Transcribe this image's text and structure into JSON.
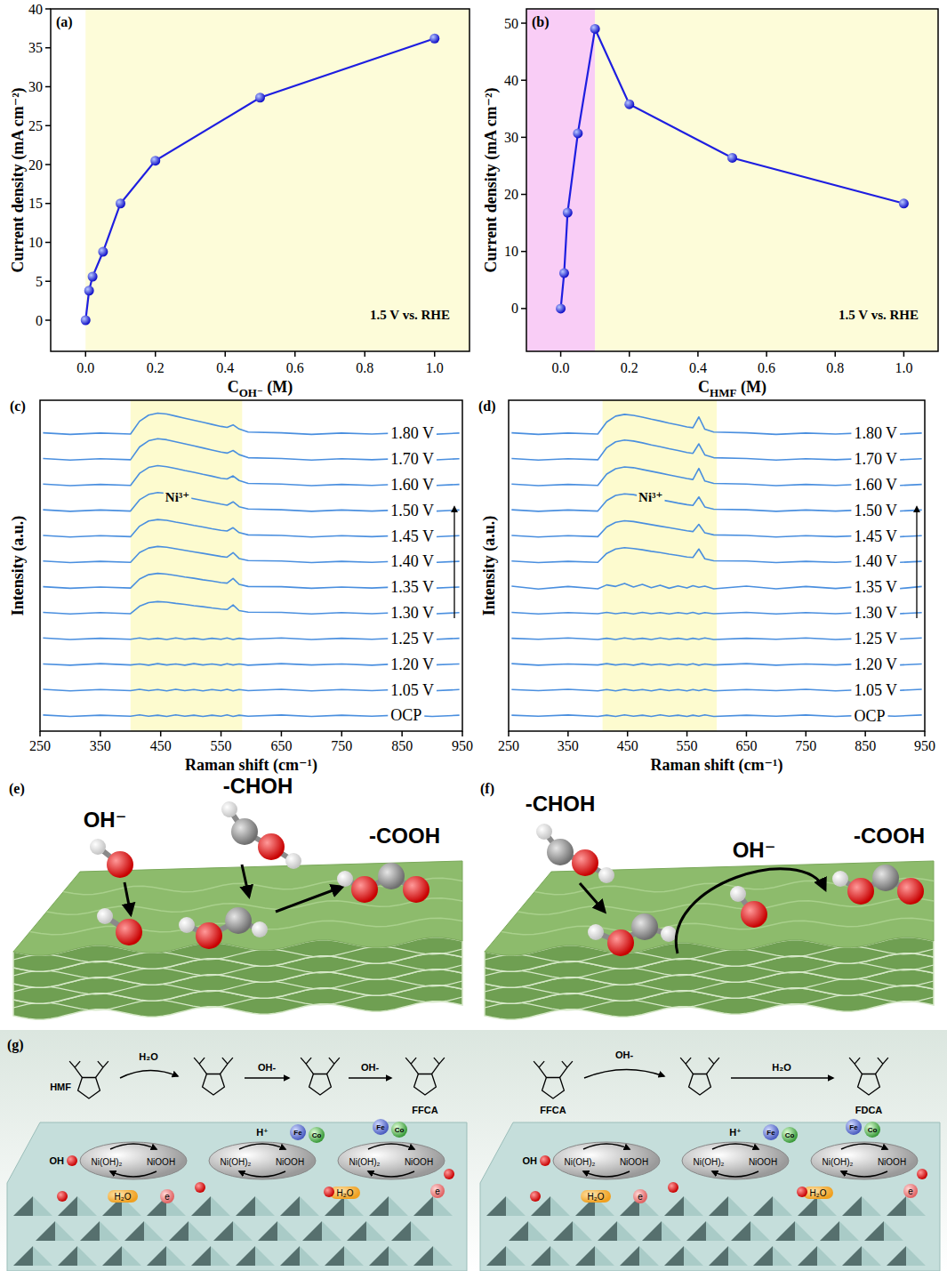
{
  "chart_data": [
    {
      "type": "line",
      "panel_label": "(a)",
      "x_label": "COH⁻ (M)",
      "y_label": "Current density (mA cm⁻²)",
      "annotation": "1.5 V vs. RHE",
      "x": [
        0,
        0.01,
        0.02,
        0.05,
        0.1,
        0.2,
        0.5,
        1.0
      ],
      "values": [
        0,
        3.8,
        5.6,
        8.8,
        15,
        20.5,
        28.6,
        36.2
      ],
      "color": "#1e1ee0",
      "marker": "circle",
      "xlim": [
        -0.1,
        1.1
      ],
      "ylim": [
        -4,
        40
      ],
      "xticks": [
        {
          "value": 0,
          "label": "0.0"
        },
        0.2,
        0.4,
        0.6,
        0.8,
        {
          "value": 1,
          "label": "1.0"
        }
      ],
      "yticks": [
        0,
        5,
        10,
        15,
        20,
        25,
        30,
        35,
        40
      ],
      "regions": [
        {
          "x": [
            0,
            1.1
          ],
          "color": "#fdfcd9"
        }
      ]
    },
    {
      "type": "line",
      "panel_label": "(b)",
      "x_label": "CHMF (M)",
      "y_label": "Current density (mA cm⁻²)",
      "annotation": "1.5 V vs. RHE",
      "x": [
        0,
        0.01,
        0.02,
        0.05,
        0.1,
        0.2,
        0.5,
        1.0
      ],
      "values": [
        0,
        6.2,
        16.8,
        30.7,
        49,
        35.8,
        26.4,
        18.4
      ],
      "color": "#1e1ee0",
      "marker": "circle",
      "xlim": [
        -0.1,
        1.1
      ],
      "ylim": [
        -7.5,
        52.5
      ],
      "xticks": [
        {
          "value": 0,
          "label": "0.0"
        },
        0.2,
        0.4,
        0.6,
        0.8,
        {
          "value": 1,
          "label": "1.0"
        }
      ],
      "yticks": [
        0,
        10,
        20,
        30,
        40,
        50
      ],
      "regions": [
        {
          "x": [
            -0.1,
            0.1
          ],
          "color": "#f9cdf6"
        },
        {
          "x": [
            0.1,
            1.1
          ],
          "color": "#fdfcd9"
        }
      ]
    },
    {
      "type": "line",
      "panel_label": "(c)",
      "x_label": "Raman shift (cm⁻¹)",
      "y_label": "Intensity (a.u.)",
      "annotation": "Ni³⁺",
      "color": "#4a8fdf",
      "tick_labels": "x",
      "xlim": [
        250,
        950
      ],
      "ylim": [
        -0.6,
        12.3
      ],
      "xticks": [
        250,
        350,
        450,
        550,
        650,
        750,
        850,
        950
      ],
      "shaded": {
        "x": [
          400,
          585
        ],
        "color": "#fdfbcf"
      },
      "x": [
        255,
        300,
        350,
        400,
        415,
        430,
        445,
        460,
        475,
        490,
        505,
        520,
        535,
        550,
        560,
        570,
        580,
        595,
        650,
        700,
        750,
        800,
        850,
        900,
        945
      ],
      "series": [
        {
          "name": "OCP",
          "values": [
            0.03,
            -0.03,
            0.02,
            -0.02,
            0.03,
            -0.02,
            0.02,
            -0.03,
            0.03,
            -0.02,
            0.02,
            -0.03,
            0.02,
            -0.02,
            0.03,
            -0.03,
            0.02,
            -0.02,
            0.03,
            -0.03,
            0.02,
            -0.02,
            0.03,
            -0.03,
            0.02
          ]
        },
        {
          "name": "1.05 V",
          "values": [
            1.03,
            0.97,
            1.02,
            0.98,
            1.03,
            0.98,
            1.02,
            0.97,
            1.03,
            0.98,
            1.02,
            0.97,
            1.02,
            0.98,
            1.03,
            0.97,
            1.02,
            0.98,
            1.03,
            0.97,
            1.02,
            0.98,
            1.03,
            0.97,
            1.02
          ]
        },
        {
          "name": "1.20 V",
          "values": [
            2.02,
            1.97,
            2.03,
            1.98,
            2.02,
            1.97,
            2.03,
            1.98,
            2.02,
            1.97,
            2.03,
            1.98,
            2.02,
            1.97,
            2.03,
            1.98,
            2.02,
            1.97,
            2.03,
            1.98,
            2.02,
            1.97,
            2.03,
            1.98,
            2.02
          ]
        },
        {
          "name": "1.25 V",
          "values": [
            3.03,
            2.97,
            3.02,
            2.98,
            3.03,
            2.98,
            3.02,
            2.97,
            3.03,
            2.98,
            3.02,
            2.97,
            3.02,
            2.98,
            3.03,
            2.97,
            3.02,
            2.98,
            3.03,
            2.97,
            3.02,
            2.98,
            3.03,
            2.97,
            3.02
          ]
        },
        {
          "name": "1.30 V",
          "values": [
            4.03,
            3.97,
            4.02,
            3.98,
            4.27,
            4.41,
            4.45,
            4.43,
            4.38,
            4.34,
            4.29,
            4.25,
            4.2,
            4.16,
            4.14,
            4.32,
            4.1,
            4.04,
            4.03,
            3.97,
            4.02,
            3.98,
            4.03,
            3.97,
            4.02
          ]
        },
        {
          "name": "1.35 V",
          "values": [
            5.03,
            4.97,
            5.02,
            4.98,
            5.33,
            5.5,
            5.55,
            5.52,
            5.47,
            5.41,
            5.36,
            5.3,
            5.25,
            5.19,
            5.17,
            5.35,
            5.12,
            5.04,
            5.03,
            4.97,
            5.02,
            4.98,
            5.03,
            4.97,
            5.02
          ]
        },
        {
          "name": "1.40 V",
          "values": [
            6.03,
            5.97,
            6.02,
            5.98,
            6.36,
            6.54,
            6.6,
            6.57,
            6.51,
            6.45,
            6.39,
            6.33,
            6.27,
            6.21,
            6.18,
            6.36,
            6.13,
            6.05,
            6.03,
            5.97,
            6.02,
            5.98,
            6.03,
            5.97,
            6.02
          ]
        },
        {
          "name": "1.45 V",
          "values": [
            7.03,
            6.97,
            7.02,
            6.98,
            7.39,
            7.59,
            7.65,
            7.62,
            7.55,
            7.49,
            7.42,
            7.36,
            7.29,
            7.23,
            7.2,
            7.33,
            7.14,
            7.05,
            7.03,
            6.97,
            7.02,
            6.98,
            7.03,
            6.97,
            7.02
          ]
        },
        {
          "name": "1.50 V",
          "values": [
            8.03,
            7.97,
            8.02,
            7.98,
            8.42,
            8.63,
            8.7,
            8.67,
            8.6,
            8.53,
            8.46,
            8.39,
            8.32,
            8.25,
            8.21,
            8.34,
            8.15,
            8.06,
            8.03,
            7.97,
            8.02,
            7.98,
            8.03,
            7.97,
            8.02
          ]
        },
        {
          "name": "1.60 V",
          "values": [
            9.03,
            8.97,
            9.02,
            8.98,
            9.45,
            9.68,
            9.75,
            9.71,
            9.64,
            9.56,
            9.49,
            9.41,
            9.34,
            9.26,
            9.23,
            9.35,
            9.17,
            9.06,
            9.03,
            8.97,
            9.02,
            8.98,
            9.03,
            8.97,
            9.02
          ]
        },
        {
          "name": "1.70 V",
          "values": [
            10.03,
            9.97,
            10.02,
            9.98,
            10.48,
            10.72,
            10.8,
            10.76,
            10.68,
            10.6,
            10.52,
            10.44,
            10.36,
            10.28,
            10.24,
            10.34,
            10.18,
            10.06,
            10.03,
            9.97,
            10.02,
            9.98,
            10.03,
            9.97,
            10.02
          ]
        },
        {
          "name": "1.80 V",
          "values": [
            11.03,
            10.97,
            11.02,
            10.98,
            11.48,
            11.72,
            11.8,
            11.76,
            11.68,
            11.6,
            11.52,
            11.44,
            11.36,
            11.28,
            11.24,
            11.34,
            11.18,
            11.06,
            11.03,
            10.97,
            11.02,
            10.98,
            11.03,
            10.97,
            11.02
          ]
        }
      ]
    },
    {
      "type": "line",
      "panel_label": "(d)",
      "x_label": "Raman shift (cm⁻¹)",
      "y_label": "Intensity (a.u.)",
      "annotation": "Ni³⁺",
      "color": "#4a8fdf",
      "tick_labels": "x",
      "xlim": [
        250,
        950
      ],
      "ylim": [
        -0.6,
        12.3
      ],
      "xticks": [
        250,
        350,
        450,
        550,
        650,
        750,
        850,
        950
      ],
      "shaded": {
        "x": [
          408,
          600
        ],
        "color": "#fdfbcf"
      },
      "x": [
        255,
        300,
        350,
        400,
        415,
        430,
        445,
        460,
        475,
        490,
        505,
        520,
        535,
        550,
        560,
        570,
        580,
        595,
        650,
        700,
        750,
        800,
        850,
        900,
        945
      ],
      "series": [
        {
          "name": "OCP",
          "values": [
            0.02,
            -0.02,
            0.03,
            -0.03,
            0.02,
            -0.03,
            0.03,
            -0.02,
            0.02,
            -0.03,
            0.03,
            -0.02,
            0.02,
            -0.03,
            0.02,
            -0.02,
            0.03,
            -0.03,
            0.02,
            -0.02,
            0.03,
            -0.03,
            0.02,
            -0.02,
            0.03
          ]
        },
        {
          "name": "1.05 V",
          "values": [
            1.02,
            0.98,
            1.03,
            0.97,
            1.02,
            0.97,
            1.03,
            0.98,
            1.02,
            0.97,
            1.03,
            0.98,
            1.02,
            0.97,
            1.02,
            0.98,
            1.03,
            0.97,
            1.02,
            0.98,
            1.03,
            0.97,
            1.02,
            0.98,
            1.03
          ]
        },
        {
          "name": "1.20 V",
          "values": [
            2.03,
            1.97,
            2.02,
            1.98,
            2.03,
            1.98,
            2.02,
            1.97,
            2.03,
            1.98,
            2.02,
            1.97,
            2.02,
            1.98,
            2.03,
            1.97,
            2.02,
            1.98,
            2.03,
            1.97,
            2.02,
            1.98,
            2.03,
            1.97,
            2.02
          ]
        },
        {
          "name": "1.25 V",
          "values": [
            3.02,
            2.98,
            3.03,
            2.97,
            3.02,
            2.97,
            3.03,
            2.98,
            3.02,
            2.97,
            3.03,
            2.98,
            3.02,
            2.97,
            3.02,
            2.98,
            3.03,
            2.97,
            3.02,
            2.98,
            3.03,
            2.97,
            3.02,
            2.98,
            3.03
          ]
        },
        {
          "name": "1.30 V",
          "values": [
            4.03,
            3.97,
            4.02,
            3.98,
            4.03,
            3.98,
            4.02,
            3.97,
            4.03,
            3.98,
            4.02,
            3.97,
            4.02,
            3.98,
            4.03,
            3.97,
            4.02,
            3.98,
            4.03,
            3.97,
            4.02,
            3.98,
            4.03,
            3.97,
            4.02
          ]
        },
        {
          "name": "1.35 V",
          "values": [
            5.05,
            4.94,
            5.04,
            4.95,
            5.1,
            5.04,
            5.16,
            5.02,
            5.12,
            4.99,
            5.09,
            4.97,
            5.06,
            4.98,
            5.07,
            5.01,
            5.05,
            4.95,
            5.05,
            4.95,
            5.04,
            4.96,
            5.05,
            4.94,
            5.04
          ]
        },
        {
          "name": "1.40 V",
          "values": [
            6.03,
            5.97,
            6.02,
            5.98,
            6.33,
            6.5,
            6.55,
            6.52,
            6.47,
            6.41,
            6.36,
            6.3,
            6.25,
            6.19,
            6.17,
            6.5,
            6.12,
            6.04,
            6.03,
            5.97,
            6.02,
            5.98,
            6.03,
            5.97,
            6.02
          ]
        },
        {
          "name": "1.45 V",
          "values": [
            7.03,
            6.97,
            7.02,
            6.98,
            7.36,
            7.54,
            7.6,
            7.57,
            7.51,
            7.45,
            7.39,
            7.33,
            7.27,
            7.21,
            7.18,
            7.46,
            7.13,
            7.05,
            7.03,
            6.97,
            7.02,
            6.98,
            7.03,
            6.97,
            7.02
          ]
        },
        {
          "name": "1.50 V",
          "values": [
            8.03,
            7.97,
            8.02,
            7.98,
            8.39,
            8.59,
            8.65,
            8.62,
            8.55,
            8.49,
            8.42,
            8.36,
            8.29,
            8.23,
            8.2,
            8.53,
            8.14,
            8.05,
            8.03,
            7.97,
            8.02,
            7.98,
            8.03,
            7.97,
            8.02
          ]
        },
        {
          "name": "1.60 V",
          "values": [
            9.03,
            8.97,
            9.02,
            8.98,
            9.42,
            9.63,
            9.7,
            9.67,
            9.6,
            9.53,
            9.46,
            9.39,
            9.32,
            9.25,
            9.21,
            9.64,
            9.15,
            9.06,
            9.03,
            8.97,
            9.02,
            8.98,
            9.03,
            8.97,
            9.02
          ]
        },
        {
          "name": "1.70 V",
          "values": [
            10.03,
            9.97,
            10.02,
            9.98,
            10.45,
            10.68,
            10.75,
            10.71,
            10.64,
            10.56,
            10.49,
            10.41,
            10.34,
            10.26,
            10.23,
            10.6,
            10.17,
            10.06,
            10.03,
            9.97,
            10.02,
            9.98,
            10.03,
            9.97,
            10.02
          ]
        },
        {
          "name": "1.80 V",
          "values": [
            11.03,
            10.97,
            11.02,
            10.98,
            11.45,
            11.68,
            11.75,
            11.71,
            11.64,
            11.56,
            11.49,
            11.41,
            11.34,
            11.26,
            11.23,
            11.65,
            11.17,
            11.06,
            11.03,
            10.97,
            11.02,
            10.98,
            11.03,
            10.97,
            11.02
          ]
        }
      ]
    }
  ],
  "diagrams": {
    "e": {
      "label": "(e)",
      "oh": "OH⁻",
      "chol": "-CHOH",
      "cooh": "-COOH"
    },
    "f": {
      "label": "(f)",
      "chol": "-CHOH",
      "oh": "OH⁻",
      "cooh": "-COOH"
    },
    "g": {
      "label": "(g)",
      "left": {
        "start": "HMF",
        "step1": "H₂O",
        "step2": "OH-",
        "step3": "OH-",
        "end": "FFCA"
      },
      "right": {
        "start": "FFCA",
        "step1": "OH-",
        "step2": "H₂O",
        "end": "FDCA"
      },
      "surface": {
        "oh": "OH",
        "ni_low": "Ni(OH)₂",
        "ni_high": "NiOOH",
        "fe": "Fe",
        "co": "Co",
        "proton": "H⁺",
        "water": "H₂O",
        "electron": "e"
      }
    }
  }
}
